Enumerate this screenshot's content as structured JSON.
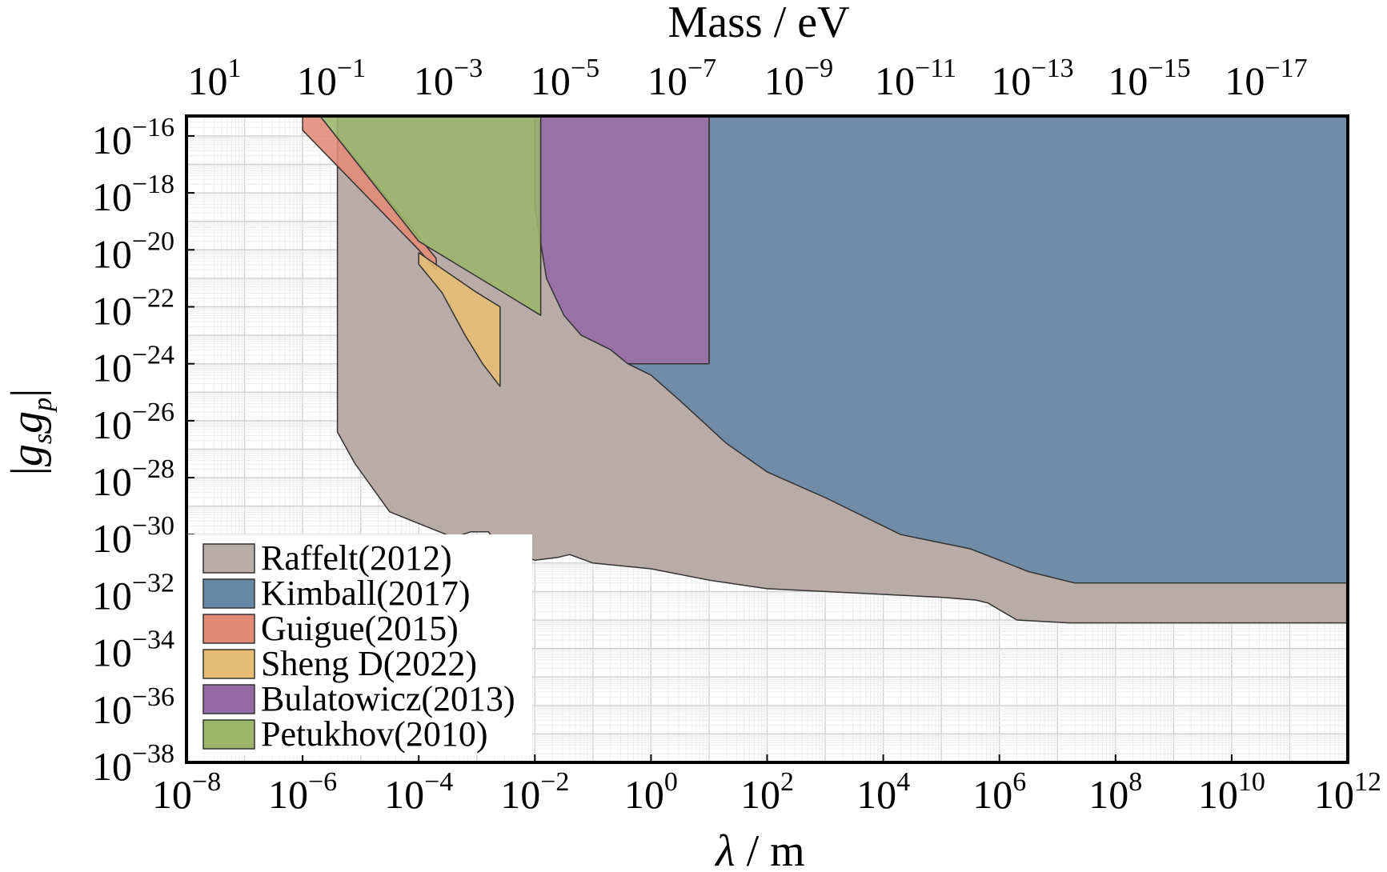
{
  "chart_data": {
    "type": "area",
    "title": "",
    "top_axis": {
      "label": "Mass / eV",
      "ticks": [
        {
          "base": "10",
          "exp": "1"
        },
        {
          "base": "10",
          "exp": "−1"
        },
        {
          "base": "10",
          "exp": "−3"
        },
        {
          "base": "10",
          "exp": "−5"
        },
        {
          "base": "10",
          "exp": "−7"
        },
        {
          "base": "10",
          "exp": "−9"
        },
        {
          "base": "10",
          "exp": "−11"
        },
        {
          "base": "10",
          "exp": "−13"
        },
        {
          "base": "10",
          "exp": "−15"
        },
        {
          "base": "10",
          "exp": "−17"
        }
      ]
    },
    "x_axis": {
      "label_symbol": "λ",
      "label_unit": " / m",
      "scale": "log",
      "range_log10": [
        -8,
        12
      ],
      "ticks": [
        {
          "base": "10",
          "exp": "−8",
          "log": -8
        },
        {
          "base": "10",
          "exp": "−6",
          "log": -6
        },
        {
          "base": "10",
          "exp": "−4",
          "log": -4
        },
        {
          "base": "10",
          "exp": "−2",
          "log": -2
        },
        {
          "base": "10",
          "exp": "0",
          "log": 0
        },
        {
          "base": "10",
          "exp": "2",
          "log": 2
        },
        {
          "base": "10",
          "exp": "4",
          "log": 4
        },
        {
          "base": "10",
          "exp": "6",
          "log": 6
        },
        {
          "base": "10",
          "exp": "8",
          "log": 8
        },
        {
          "base": "10",
          "exp": "10",
          "log": 10
        },
        {
          "base": "10",
          "exp": "12",
          "log": 12
        }
      ]
    },
    "y_axis": {
      "label": "|gsgp|",
      "scale": "log",
      "range_log10": [
        -38.0,
        -15.3
      ],
      "ticks": [
        {
          "base": "10",
          "exp": "−16",
          "log": -16
        },
        {
          "base": "10",
          "exp": "−18",
          "log": -18
        },
        {
          "base": "10",
          "exp": "−20",
          "log": -20
        },
        {
          "base": "10",
          "exp": "−22",
          "log": -22
        },
        {
          "base": "10",
          "exp": "−24",
          "log": -24
        },
        {
          "base": "10",
          "exp": "−26",
          "log": -26
        },
        {
          "base": "10",
          "exp": "−28",
          "log": -28
        },
        {
          "base": "10",
          "exp": "−30",
          "log": -30
        },
        {
          "base": "10",
          "exp": "−32",
          "log": -32
        },
        {
          "base": "10",
          "exp": "−34",
          "log": -34
        },
        {
          "base": "10",
          "exp": "−36",
          "log": -36
        },
        {
          "base": "10",
          "exp": "−38",
          "log": -38
        }
      ]
    },
    "grid": true,
    "legend_position": "bottom-left",
    "series": [
      {
        "name": "Raffelt(2012)",
        "color": "#b9aba8",
        "points_log10": [
          [
            -5.4,
            -15.3
          ],
          [
            12,
            -15.3
          ],
          [
            12,
            -33.1
          ],
          [
            7.2,
            -33.1
          ],
          [
            6.3,
            -33.0
          ],
          [
            5.8,
            -32.4
          ],
          [
            5.6,
            -32.3
          ],
          [
            5,
            -32.2
          ],
          [
            3,
            -32.0
          ],
          [
            2,
            -31.9
          ],
          [
            1,
            -31.6
          ],
          [
            0,
            -31.2
          ],
          [
            -1,
            -31.0
          ],
          [
            -1.4,
            -30.7
          ],
          [
            -1.6,
            -30.8
          ],
          [
            -2,
            -30.9
          ],
          [
            -2.6,
            -30.5
          ],
          [
            -2.8,
            -29.9
          ],
          [
            -3.1,
            -29.9
          ],
          [
            -3.4,
            -30.1
          ],
          [
            -4.5,
            -29.2
          ],
          [
            -5.1,
            -27.5
          ],
          [
            -5.4,
            -26.4
          ]
        ]
      },
      {
        "name": "Kimball(2017)",
        "color": "#6787a5",
        "points_log10": [
          [
            1,
            -15.3
          ],
          [
            12,
            -15.3
          ],
          [
            12,
            -31.7
          ],
          [
            7.3,
            -31.7
          ],
          [
            6.5,
            -31.3
          ],
          [
            5.5,
            -30.5
          ],
          [
            4.3,
            -30.0
          ],
          [
            3,
            -28.7
          ],
          [
            2,
            -27.8
          ],
          [
            1.3,
            -26.8
          ],
          [
            0.5,
            -25.3
          ],
          [
            0,
            -24.4
          ],
          [
            -0.4,
            -24.0
          ],
          [
            1,
            -24.0
          ]
        ]
      },
      {
        "name": "Guigue(2015)",
        "color": "#e18a76",
        "points_log10": [
          [
            -6.0,
            -15.3
          ],
          [
            -5.7,
            -15.3
          ],
          [
            -3.7,
            -20.3
          ],
          [
            -3.7,
            -20.7
          ],
          [
            -4.0,
            -20.0
          ],
          [
            -6.0,
            -15.8
          ]
        ]
      },
      {
        "name": "Sheng D(2022)",
        "color": "#e6bd72",
        "points_log10": [
          [
            -4.0,
            -20.1
          ],
          [
            -3.0,
            -21.5
          ],
          [
            -2.6,
            -22.0
          ],
          [
            -2.6,
            -24.8
          ],
          [
            -2.9,
            -24.0
          ],
          [
            -3.2,
            -23.0
          ],
          [
            -3.6,
            -21.5
          ],
          [
            -4.0,
            -20.5
          ]
        ]
      },
      {
        "name": "Bulatowicz(2013)",
        "color": "#946aa4",
        "points_log10": [
          [
            -1.1,
            -15.3
          ],
          [
            1,
            -15.3
          ],
          [
            1,
            -24.0
          ],
          [
            -0.4,
            -24.0
          ],
          [
            -0.7,
            -23.5
          ],
          [
            -1.2,
            -23.0
          ],
          [
            -1.5,
            -22.3
          ],
          [
            -1.8,
            -21.0
          ],
          [
            -2.0,
            -18.5
          ],
          [
            -2.0,
            -15.3
          ]
        ]
      },
      {
        "name": "Petukhov(2010)",
        "color": "#9bb56b",
        "points_log10": [
          [
            -5.7,
            -15.3
          ],
          [
            -1.9,
            -15.3
          ],
          [
            -1.9,
            -22.3
          ],
          [
            -2.3,
            -21.8
          ],
          [
            -4.0,
            -19.7
          ]
        ]
      }
    ]
  }
}
